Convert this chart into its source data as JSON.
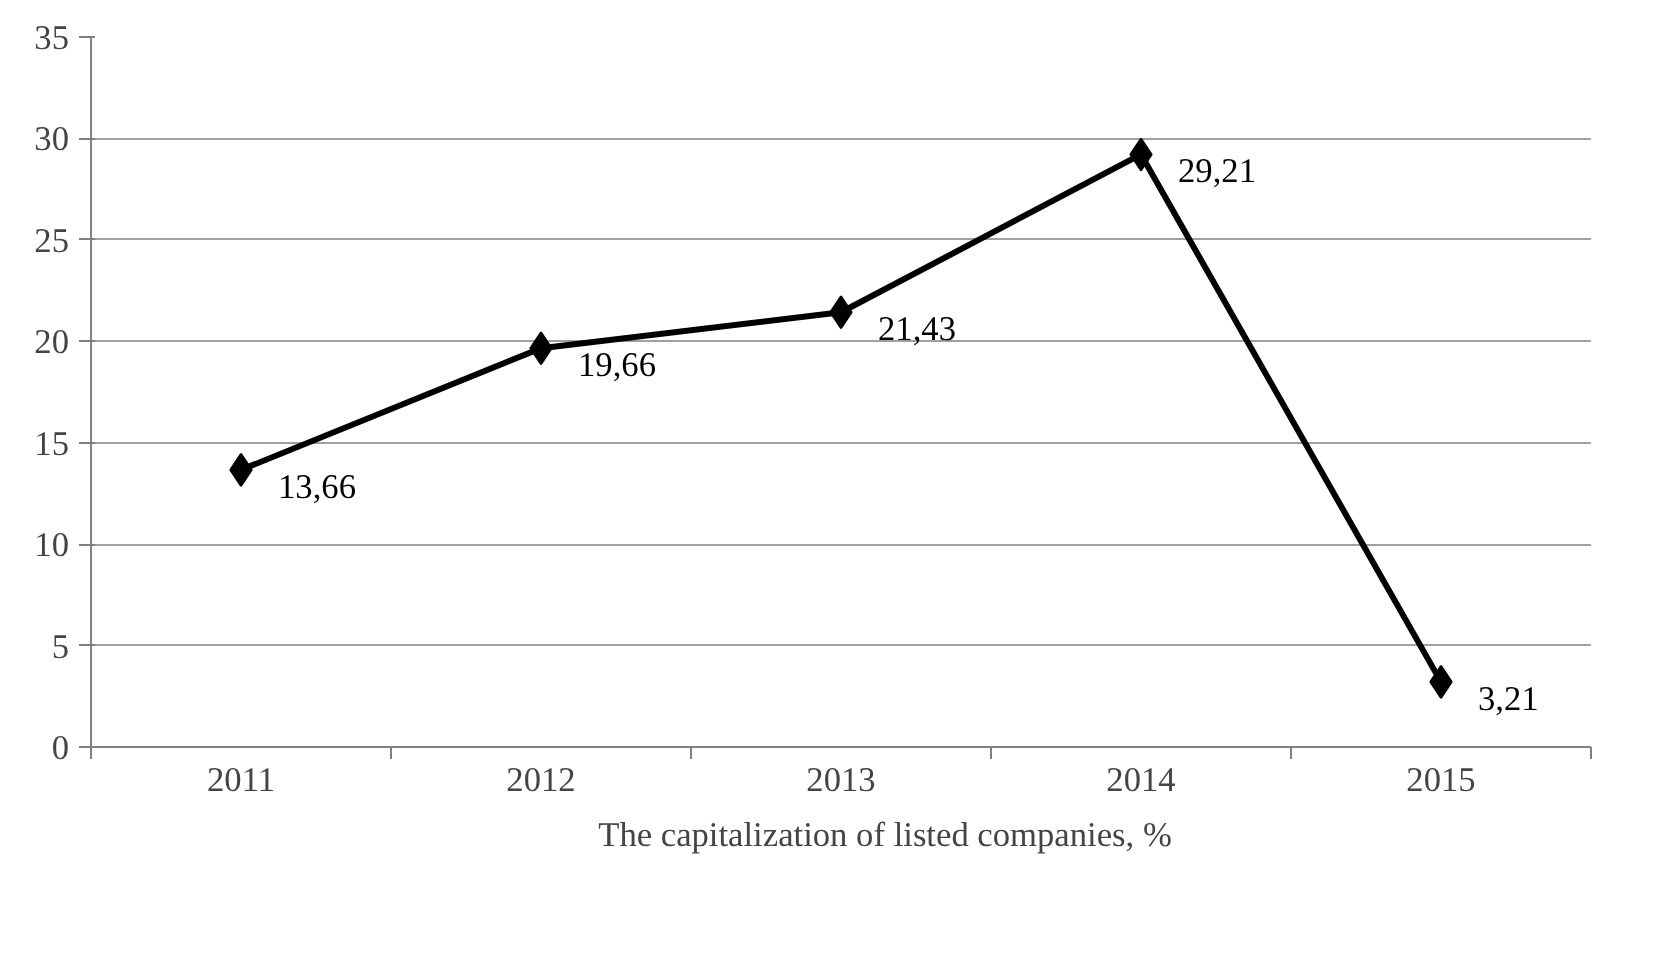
{
  "chart_data": {
    "type": "line",
    "categories": [
      "2011",
      "2012",
      "2013",
      "2014",
      "2015"
    ],
    "series": [
      {
        "name": "The capitalization of listed companies, %",
        "color": "#000000",
        "values": [
          13.66,
          19.66,
          21.43,
          29.21,
          3.21
        ],
        "value_labels": [
          "13,66",
          "19,66",
          "21,43",
          "29,21",
          "3,21"
        ]
      }
    ],
    "ylim": [
      0,
      35
    ],
    "yticks": [
      0,
      5,
      10,
      15,
      20,
      25,
      30,
      35
    ],
    "grid": "y",
    "legend": "bottom",
    "marker": "diamond",
    "line_style": "solid"
  }
}
